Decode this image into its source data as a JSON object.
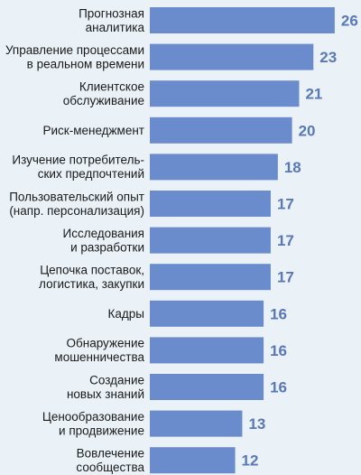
{
  "chart_data": {
    "type": "bar",
    "orientation": "horizontal",
    "bar_color": "#6b8ccc",
    "value_color": "#5a78b8",
    "background": "#eaf2f8",
    "categories": [
      [
        "Прогнозная",
        "аналитика"
      ],
      [
        "Управление процессами",
        "в реальном времени"
      ],
      [
        "Клиентское",
        "обслуживание"
      ],
      [
        "Риск-менеджмент"
      ],
      [
        "Изучение потребитель-",
        "ских предпочтений"
      ],
      [
        "Пользовательский опыт",
        "(напр. персонализация)"
      ],
      [
        "Исследования",
        "и разработки"
      ],
      [
        "Цепочка поставок,",
        "логистика, закупки"
      ],
      [
        "Кадры"
      ],
      [
        "Обнаружение",
        "мошенничества"
      ],
      [
        "Создание",
        "новых знаний"
      ],
      [
        "Ценообразование",
        "и продвижение"
      ],
      [
        "Вовлечение",
        "сообщества"
      ]
    ],
    "values": [
      26,
      23,
      21,
      20,
      18,
      17,
      17,
      17,
      16,
      16,
      16,
      13,
      12
    ]
  }
}
